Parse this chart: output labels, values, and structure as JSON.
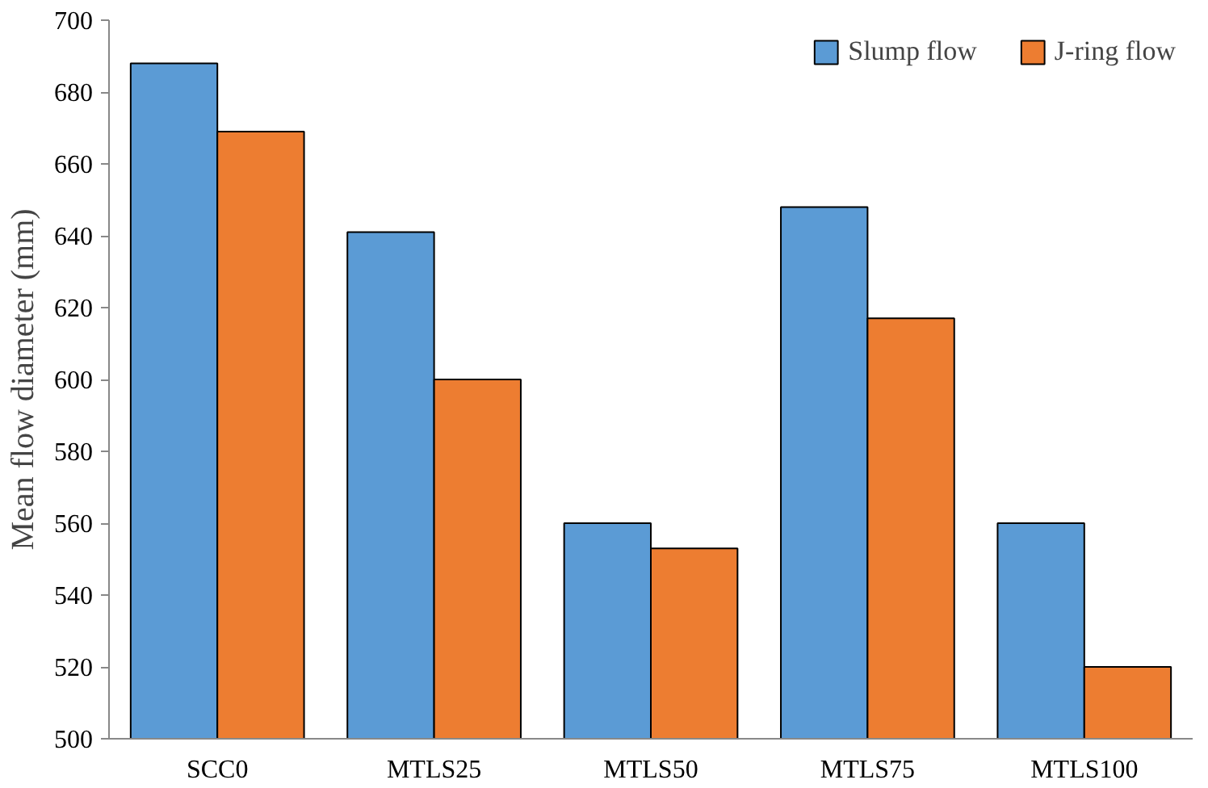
{
  "chart_data": {
    "type": "bar",
    "ylabel": "Mean flow diameter (mm)",
    "categories": [
      "SCC0",
      "MTLS25",
      "MTLS50",
      "MTLS75",
      "MTLS100"
    ],
    "series": [
      {
        "name": "Slump flow",
        "color": "#5b9bd5",
        "values": [
          688,
          641,
          560,
          648,
          560
        ]
      },
      {
        "name": "J-ring flow",
        "color": "#ed7d31",
        "values": [
          669,
          600,
          553,
          617,
          520
        ]
      }
    ],
    "ylim": [
      500,
      700
    ],
    "yticks": [
      500,
      520,
      540,
      560,
      580,
      600,
      620,
      640,
      660,
      680,
      700
    ],
    "grid": false,
    "legend": "top right"
  }
}
